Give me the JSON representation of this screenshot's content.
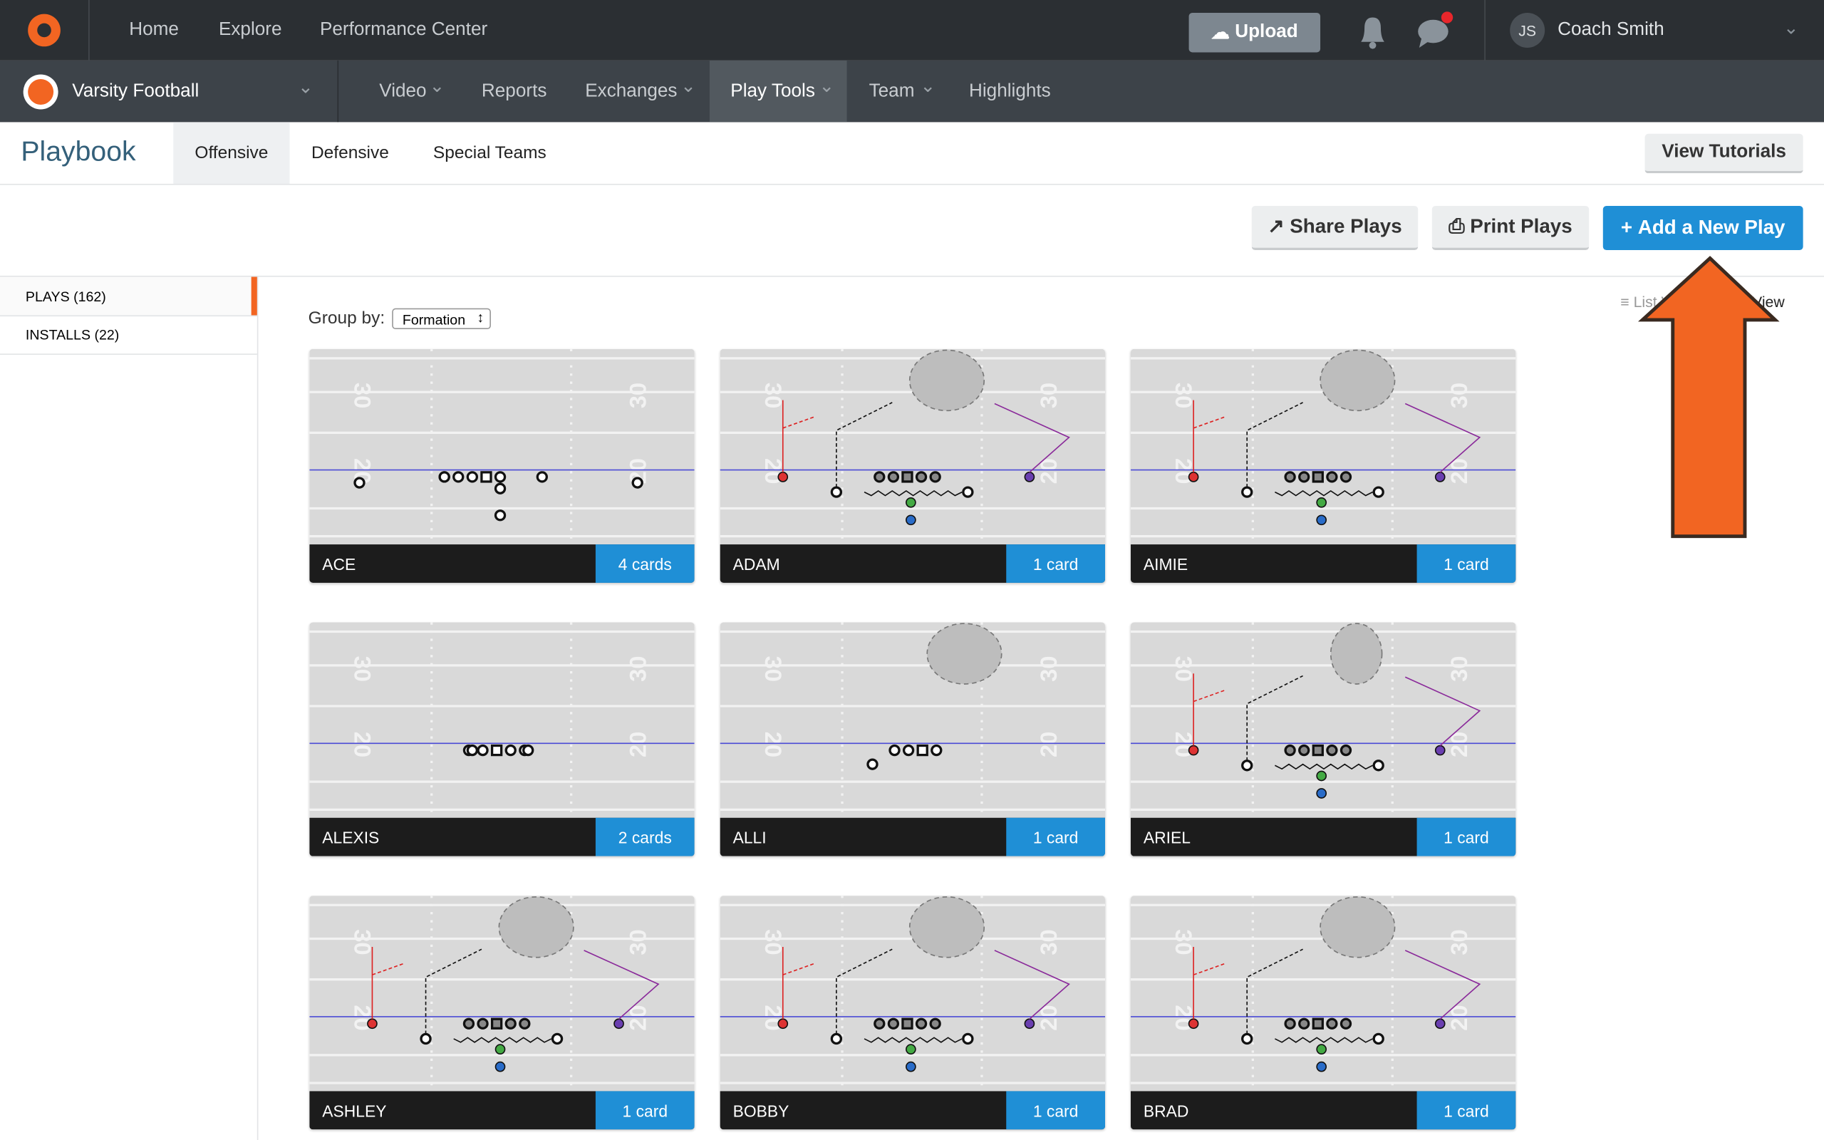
{
  "top_nav": {
    "items": [
      "Home",
      "Explore",
      "Performance Center"
    ],
    "upload": "Upload",
    "user_initials": "JS",
    "user_name": "Coach Smith"
  },
  "sub_nav": {
    "team": "Varsity Football",
    "items": [
      "Video",
      "Reports",
      "Exchanges",
      "Play Tools",
      "Team",
      "Highlights"
    ]
  },
  "header": {
    "title": "Playbook",
    "tabs": [
      "Offensive",
      "Defensive",
      "Special Teams"
    ],
    "tutorials": "View Tutorials"
  },
  "actions": [
    "Share Plays",
    "Print Plays",
    "Add a New Play"
  ],
  "sidebar": [
    "PLAYS (162)",
    "INSTALLS (22)"
  ],
  "group_by": {
    "label": "Group by:",
    "value": "Formation"
  },
  "view_toggle": [
    "List View",
    "Grid View"
  ],
  "field_numbers": [
    "30",
    "20"
  ],
  "plays": [
    {
      "name": "ACE",
      "count": "4 cards"
    },
    {
      "name": "ADAM",
      "count": "1 card"
    },
    {
      "name": "AIMIE",
      "count": "1 card"
    },
    {
      "name": "ALEXIS",
      "count": "2 cards"
    },
    {
      "name": "ALLI",
      "count": "1 card"
    },
    {
      "name": "ARIEL",
      "count": "1 card"
    },
    {
      "name": "ASHLEY",
      "count": "1 card"
    },
    {
      "name": "BOBBY",
      "count": "1 card"
    },
    {
      "name": "BRAD",
      "count": "1 card"
    }
  ]
}
